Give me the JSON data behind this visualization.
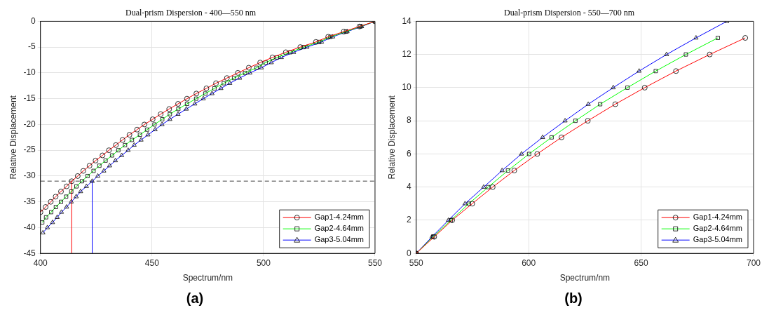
{
  "chart_data": [
    {
      "type": "line",
      "title": "Dual-prism Dispersion - 400—550 nm",
      "xlabel": "Spectrum/nm",
      "ylabel": "Relative Displacement",
      "xlim": [
        400,
        550
      ],
      "xticks": [
        400,
        450,
        500,
        550
      ],
      "ylim": [
        -45,
        0
      ],
      "yticks": [
        -45,
        -40,
        -35,
        -30,
        -25,
        -20,
        -15,
        -10,
        -5,
        0
      ],
      "grid": true,
      "legend": "bottom right",
      "annotations": [
        "(a)"
      ],
      "ref_lines": [
        {
          "axis": "y",
          "value": -31,
          "color": "#808080",
          "line_style": "dashed"
        }
      ],
      "series": [
        {
          "name": "Gap1-4.24mm",
          "color": "#ff0000",
          "marker": "circle",
          "x": [
            400,
            402.3,
            404.6,
            406.8,
            409.2,
            411.7,
            414,
            416.7,
            419.2,
            422,
            424.7,
            427.8,
            430.7,
            433.8,
            436.8,
            439.9,
            443.3,
            446.6,
            450.3,
            453.9,
            457.7,
            461.7,
            465.7,
            469.9,
            474.4,
            478.7,
            483.6,
            488.5,
            493.4,
            498.5,
            504,
            510,
            516.5,
            523.5,
            529,
            536,
            543,
            550
          ],
          "values": [
            -37,
            -36,
            -35,
            -34,
            -33,
            -32,
            -31,
            -30,
            -29,
            -28,
            -27,
            -26,
            -25,
            -24,
            -23,
            -22,
            -21,
            -20,
            -19,
            -18,
            -17,
            -16,
            -15,
            -14,
            -13,
            -12,
            -11,
            -10,
            -9,
            -8,
            -7,
            -6,
            -5,
            -4,
            -3,
            -2,
            -1,
            0
          ]
        },
        {
          "name": "Gap2-4.64mm",
          "color": "#00ff00",
          "marker": "square",
          "x": [
            400.8,
            402.5,
            404.8,
            406.9,
            409.2,
            411.5,
            413.8,
            416.1,
            418.6,
            421.1,
            423.8,
            426.4,
            429.2,
            432.1,
            434.9,
            437.9,
            441,
            444.6,
            447.8,
            451.1,
            454.6,
            458,
            461.8,
            465.7,
            469.8,
            473.9,
            478,
            482.2,
            486.8,
            491.7,
            496.9,
            501,
            506,
            512,
            518,
            525,
            530,
            537,
            543.5,
            550
          ],
          "values": [
            -39,
            -38,
            -37,
            -36,
            -35,
            -34,
            -33,
            -32,
            -31,
            -30,
            -29,
            -28,
            -27,
            -26,
            -25,
            -24,
            -23,
            -22,
            -21,
            -20,
            -19,
            -18,
            -17,
            -16,
            -15,
            -14,
            -13,
            -12,
            -11,
            -10,
            -9,
            -8,
            -7,
            -6,
            -5,
            -4,
            -3,
            -2,
            -1,
            0
          ]
        },
        {
          "name": "Gap3-5.04mm",
          "color": "#0000ff",
          "marker": "triangle",
          "x": [
            401.1,
            403.1,
            405.4,
            407.5,
            409.4,
            411.7,
            413.8,
            416,
            418,
            420.6,
            423.2,
            425.7,
            428.4,
            431,
            433.6,
            436.4,
            439.3,
            442,
            445.1,
            448.2,
            451.4,
            454.5,
            458,
            461.7,
            465.4,
            469.2,
            473,
            476.9,
            480.9,
            484.9,
            489.3,
            493.9,
            499,
            503.5,
            508,
            513.5,
            519.5,
            526,
            531,
            537.5,
            544,
            550
          ],
          "values": [
            -41,
            -40,
            -39,
            -38,
            -37,
            -36,
            -35,
            -34,
            -33,
            -32,
            -31,
            -30,
            -29,
            -28,
            -27,
            -26,
            -25,
            -24,
            -23,
            -22,
            -21,
            -20,
            -19,
            -18,
            -17,
            -16,
            -15,
            -14,
            -13,
            -12,
            -11,
            -10,
            -9,
            -8,
            -7,
            -6,
            -5,
            -4,
            -3,
            -2,
            -1,
            0
          ]
        },
        {
          "color": "#ff0000",
          "marker": "none",
          "x": [
            414,
            414
          ],
          "values": [
            -45,
            -31
          ]
        },
        {
          "color": "#0000ff",
          "marker": "none",
          "x": [
            423.2,
            423.2
          ],
          "values": [
            -45,
            -31
          ]
        }
      ]
    },
    {
      "type": "line",
      "title": "Dual-prism Dispersion - 550—700 nm",
      "xlabel": "Spectrum/nm",
      "ylabel": "Relative Displacement",
      "xlim": [
        550,
        700
      ],
      "xticks": [
        550,
        600,
        650,
        700
      ],
      "ylim": [
        0,
        14
      ],
      "yticks": [
        0,
        2,
        4,
        6,
        8,
        10,
        12,
        14
      ],
      "grid": true,
      "legend": "bottom right",
      "annotations": [
        "(b)"
      ],
      "series": [
        {
          "name": "Gap1-4.24mm",
          "color": "#ff0000",
          "marker": "circle",
          "x": [
            550,
            558,
            566,
            574.9,
            584,
            593.6,
            603.8,
            614.6,
            626.3,
            638.5,
            651.6,
            665.5,
            680.5,
            696.3
          ],
          "values": [
            0,
            1,
            2,
            3,
            4,
            5,
            6,
            7,
            8,
            9,
            10,
            11,
            12,
            13
          ]
        },
        {
          "name": "Gap2-4.64mm",
          "color": "#00ff00",
          "marker": "square",
          "x": [
            550,
            557.5,
            565.4,
            573.4,
            582,
            590.8,
            600.2,
            610.2,
            620.8,
            631.8,
            643.9,
            656.5,
            669.9,
            684.1
          ],
          "values": [
            0,
            1,
            2,
            3,
            4,
            5,
            6,
            7,
            8,
            9,
            10,
            11,
            12,
            13
          ]
        },
        {
          "name": "Gap3-5.04mm",
          "color": "#0000ff",
          "marker": "triangle",
          "x": [
            550,
            557,
            564.3,
            571.7,
            580,
            588.2,
            596.8,
            606.2,
            616.2,
            626.5,
            637.6,
            649.1,
            661.3,
            674.4,
            688.1
          ],
          "values": [
            0,
            1,
            2,
            3,
            4,
            5,
            6,
            7,
            8,
            9,
            10,
            11,
            12,
            13,
            14
          ]
        }
      ]
    }
  ]
}
